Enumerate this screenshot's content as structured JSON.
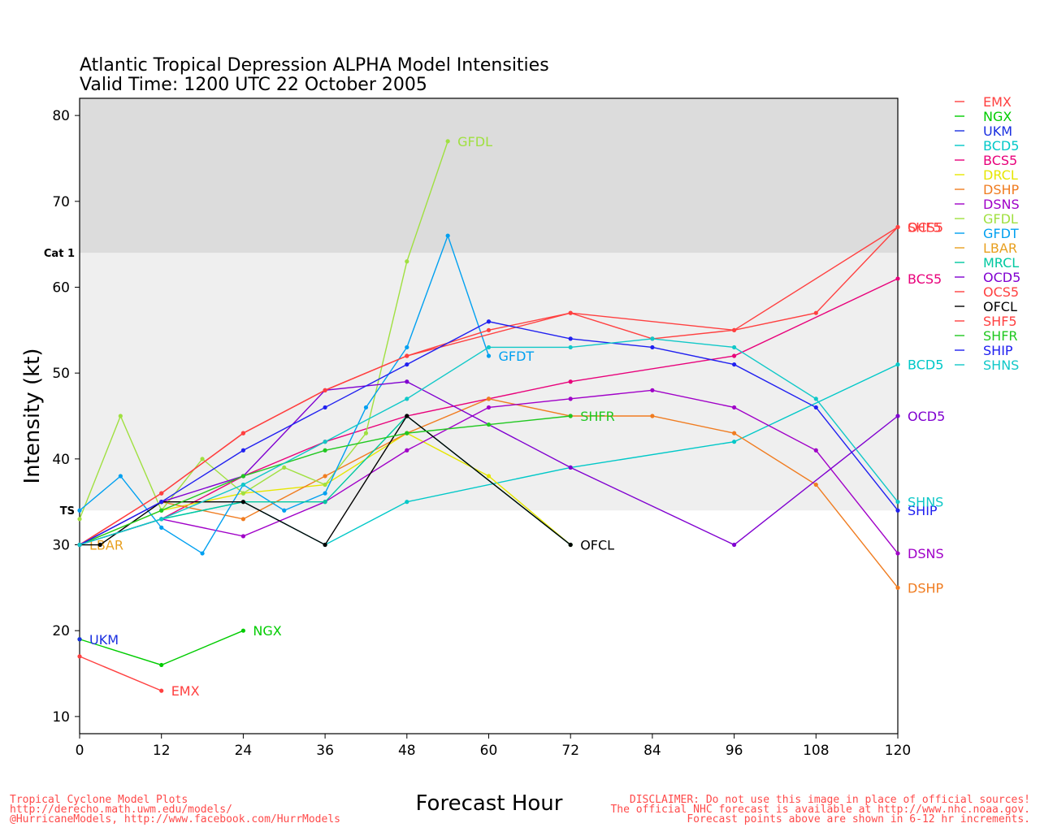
{
  "footer": {
    "left": [
      "Tropical Cyclone Model Plots",
      "http://derecho.math.uwm.edu/models/",
      "@HurricaneModels, http://www.facebook.com/HurrModels"
    ],
    "right": [
      "DISCLAIMER: Do not use this image in place of official sources!",
      "The official NHC forecast is available at http://www.nhc.noaa.gov.",
      "Forecast points above are shown in 6-12 hr increments."
    ]
  },
  "chart_data": {
    "type": "line",
    "title": "Atlantic Tropical Depression ALPHA Model Intensities",
    "subtitle": "Valid Time: 1200 UTC 22 October 2005",
    "xlabel": "Forecast Hour",
    "ylabel": "Intensity (kt)",
    "xlim": [
      0,
      120
    ],
    "ylim": [
      8,
      82
    ],
    "xticks": [
      0,
      12,
      24,
      36,
      48,
      60,
      72,
      84,
      96,
      108,
      120
    ],
    "yticks": [
      10,
      20,
      30,
      40,
      50,
      60,
      70,
      80
    ],
    "grid": false,
    "legend_position": "right",
    "bands": [
      {
        "label": "TS",
        "from": 34,
        "to": 64,
        "color": "#efefef"
      },
      {
        "label": "Cat 1",
        "from": 64,
        "to": 82,
        "color": "#dcdcdc"
      }
    ],
    "series": [
      {
        "name": "EMX",
        "color": "#ff4040",
        "x": [
          0,
          12
        ],
        "y": [
          17,
          13
        ],
        "end_label": "EMX"
      },
      {
        "name": "NGX",
        "color": "#00cc00",
        "x": [
          0,
          12,
          24
        ],
        "y": [
          19,
          16,
          20
        ],
        "end_label": "NGX"
      },
      {
        "name": "UKM",
        "color": "#1a2fe0",
        "x": [
          0
        ],
        "y": [
          19
        ],
        "end_label": "UKM"
      },
      {
        "name": "BCD5",
        "color": "#00c8c8",
        "x": [
          0,
          12,
          24,
          36,
          48,
          72,
          96,
          120
        ],
        "y": [
          30,
          33,
          35,
          30,
          35,
          39,
          42,
          51
        ],
        "end_label": "BCD5"
      },
      {
        "name": "BCS5",
        "color": "#e8007a",
        "x": [
          0,
          12,
          24,
          36,
          48,
          60,
          72,
          96,
          120
        ],
        "y": [
          30,
          33,
          38,
          42,
          45,
          47,
          49,
          52,
          61
        ],
        "end_label": "BCS5"
      },
      {
        "name": "DRCL",
        "color": "#e6e600",
        "x": [
          0,
          12,
          24,
          36,
          48,
          60,
          72
        ],
        "y": [
          30,
          34,
          36,
          37,
          43,
          38,
          30
        ],
        "end_label": ""
      },
      {
        "name": "DSHP",
        "color": "#f07c20",
        "x": [
          0,
          12,
          24,
          36,
          48,
          60,
          72,
          84,
          96,
          108,
          120
        ],
        "y": [
          30,
          35,
          33,
          38,
          43,
          47,
          45,
          45,
          43,
          37,
          25
        ],
        "end_label": "DSHP"
      },
      {
        "name": "DSNS",
        "color": "#a000c8",
        "x": [
          0,
          12,
          24,
          36,
          48,
          60,
          72,
          84,
          96,
          108,
          120
        ],
        "y": [
          30,
          33,
          31,
          35,
          41,
          46,
          47,
          48,
          46,
          41,
          29
        ],
        "end_label": "DSNS"
      },
      {
        "name": "GFDL",
        "color": "#a0e040",
        "x": [
          0,
          6,
          12,
          18,
          24,
          30,
          36,
          42,
          48,
          54
        ],
        "y": [
          33,
          45,
          34,
          40,
          36,
          39,
          37,
          43,
          63,
          77
        ],
        "end_label": "GFDL"
      },
      {
        "name": "GFDT",
        "color": "#00a0f0",
        "x": [
          0,
          6,
          12,
          18,
          24,
          30,
          36,
          42,
          48,
          54,
          60
        ],
        "y": [
          34,
          38,
          32,
          29,
          37,
          34,
          36,
          46,
          53,
          66,
          52
        ],
        "end_label": "GFDT"
      },
      {
        "name": "LBAR",
        "color": "#e8a020",
        "x": [
          0
        ],
        "y": [
          30
        ],
        "end_label": "LBAR"
      },
      {
        "name": "MRCL",
        "color": "#00c8a0",
        "x": [
          0,
          12,
          24,
          36,
          48,
          72
        ],
        "y": [
          30,
          33,
          35,
          35,
          45,
          30
        ],
        "end_label": ""
      },
      {
        "name": "OCD5",
        "color": "#8000d0",
        "x": [
          0,
          12,
          24,
          36,
          48,
          72,
          96,
          120
        ],
        "y": [
          30,
          35,
          38,
          48,
          49,
          39,
          30,
          45
        ],
        "end_label": "OCD5"
      },
      {
        "name": "OCS5",
        "color": "#ff4040",
        "x": [
          0,
          12,
          24,
          36,
          48,
          72,
          96,
          120
        ],
        "y": [
          30,
          36,
          43,
          48,
          52,
          57,
          55,
          67
        ],
        "end_label": "OCS5"
      },
      {
        "name": "OFCL",
        "color": "#000000",
        "x": [
          0,
          3,
          12,
          24,
          36,
          48,
          72
        ],
        "y": [
          30,
          30,
          35,
          35,
          30,
          45,
          30
        ],
        "end_label": "OFCL"
      },
      {
        "name": "SHF5",
        "color": "#ff4040",
        "x": [
          0,
          12,
          24,
          36,
          48,
          60,
          72,
          84,
          96,
          108,
          120
        ],
        "y": [
          30,
          36,
          43,
          48,
          52,
          55,
          57,
          54,
          55,
          57,
          67
        ],
        "end_label": "SHF5"
      },
      {
        "name": "SHFR",
        "color": "#20c820",
        "x": [
          0,
          12,
          24,
          36,
          48,
          60,
          72
        ],
        "y": [
          30,
          34,
          38,
          41,
          43,
          44,
          45
        ],
        "end_label": "SHFR"
      },
      {
        "name": "SHIP",
        "color": "#2020f0",
        "x": [
          0,
          12,
          24,
          36,
          48,
          60,
          72,
          84,
          96,
          108,
          120
        ],
        "y": [
          30,
          35,
          41,
          46,
          51,
          56,
          54,
          53,
          51,
          46,
          34
        ],
        "end_label": "SHIP"
      },
      {
        "name": "SHNS",
        "color": "#10c8c8",
        "x": [
          0,
          12,
          24,
          36,
          48,
          60,
          72,
          84,
          96,
          108,
          120
        ],
        "y": [
          30,
          33,
          37,
          42,
          47,
          53,
          53,
          54,
          53,
          47,
          35
        ],
        "end_label": "SHNS"
      }
    ]
  }
}
